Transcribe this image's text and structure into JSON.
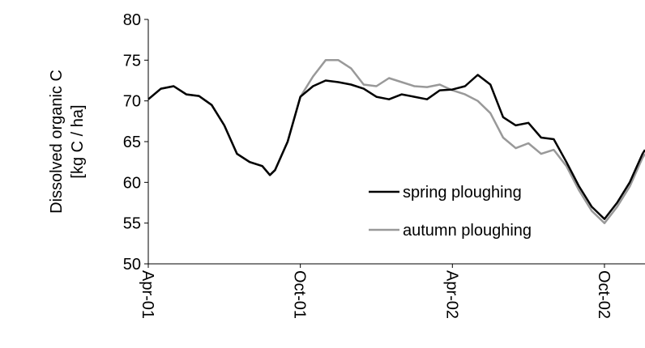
{
  "chart_data": {
    "type": "line",
    "y_label": [
      "Dissolved organic C",
      "[kg C / ha]"
    ],
    "x": [
      0,
      0.5,
      1,
      1.5,
      2,
      2.5,
      3,
      3.5,
      4,
      4.5,
      4.8,
      5,
      5.5,
      6,
      6.5,
      7,
      7.5,
      8,
      8.5,
      9,
      9.5,
      10,
      10.5,
      11,
      11.5,
      12,
      12.5,
      13,
      13.5,
      14,
      14.5,
      15,
      15.5,
      16,
      16.5,
      17,
      17.5,
      18,
      18.5,
      19,
      19.5,
      19.6
    ],
    "series": [
      {
        "name": "spring ploughing",
        "color": "#000000",
        "values": [
          70.2,
          71.5,
          71.8,
          70.8,
          70.6,
          69.5,
          67,
          63.5,
          62.5,
          62,
          60.9,
          61.5,
          65,
          70.5,
          71.8,
          72.5,
          72.3,
          72,
          71.5,
          70.5,
          70.2,
          70.8,
          70.5,
          70.2,
          71.3,
          71.4,
          71.8,
          73.2,
          72,
          68,
          67,
          67.3,
          65.5,
          65.3,
          62.5,
          59.5,
          57,
          55.5,
          57.5,
          60,
          63.5,
          64
        ]
      },
      {
        "name": "autumn ploughing",
        "color": "#999999",
        "values": [
          70.2,
          71.5,
          71.8,
          70.8,
          70.6,
          69.5,
          67,
          63.5,
          62.5,
          62,
          60.9,
          61.5,
          65,
          70.5,
          73,
          75,
          75,
          74,
          72,
          71.8,
          72.8,
          72.3,
          71.8,
          71.7,
          72,
          71.3,
          70.8,
          70,
          68.5,
          65.5,
          64.2,
          64.8,
          63.5,
          64,
          62,
          59,
          56.5,
          55,
          57,
          59.5,
          63,
          63.5
        ]
      }
    ],
    "xlim": [
      0,
      19.6
    ],
    "xticks": [
      {
        "value": 0,
        "label": "Apr-01"
      },
      {
        "value": 6,
        "label": "Oct-01"
      },
      {
        "value": 12,
        "label": "Apr-02"
      },
      {
        "value": 18,
        "label": "Oct-02"
      }
    ],
    "ylim": [
      50,
      80
    ],
    "yticks": [
      50,
      55,
      60,
      65,
      70,
      75,
      80
    ],
    "legend": "lower-right"
  }
}
